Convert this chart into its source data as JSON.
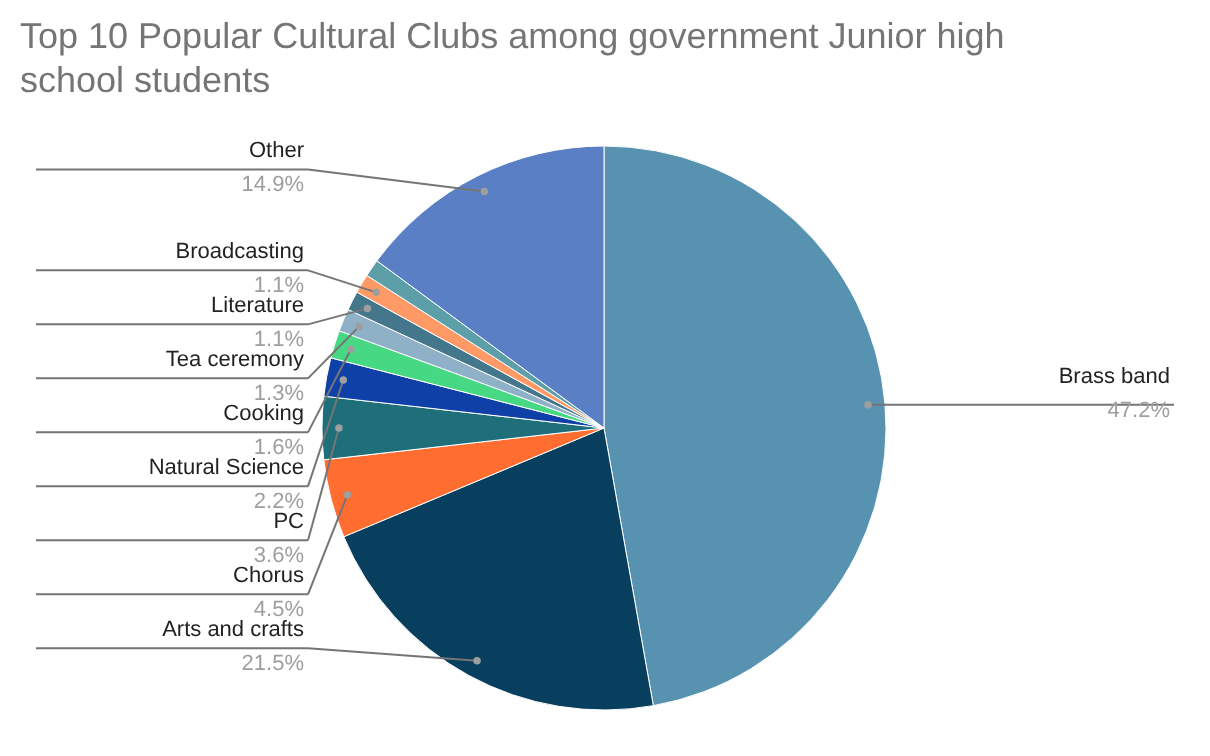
{
  "chart_data": {
    "type": "pie",
    "title": "Top 10 Popular Cultural Clubs among government Junior high school students",
    "categories": [
      "Brass band",
      "Arts and crafts",
      "Chorus",
      "PC",
      "Natural Science",
      "Cooking",
      "Tea ceremony",
      "Literature",
      "Broadcasting",
      null,
      "Other"
    ],
    "values": [
      47.2,
      21.5,
      4.5,
      3.6,
      2.2,
      1.6,
      1.3,
      1.1,
      1.1,
      1.0,
      14.9
    ],
    "value_labels": [
      "47.2%",
      "21.5%",
      "4.5%",
      "3.6%",
      "2.2%",
      "1.6%",
      "1.3%",
      "1.1%",
      "1.1%",
      null,
      "14.9%"
    ],
    "colors": [
      "#5793b0",
      "#083f5e",
      "#ff6d31",
      "#1e6f7a",
      "#0f40a8",
      "#47d884",
      "#8fb1c8",
      "#45778c",
      "#ff9a66",
      "#5c9fa8",
      "#5a7fc4"
    ]
  }
}
